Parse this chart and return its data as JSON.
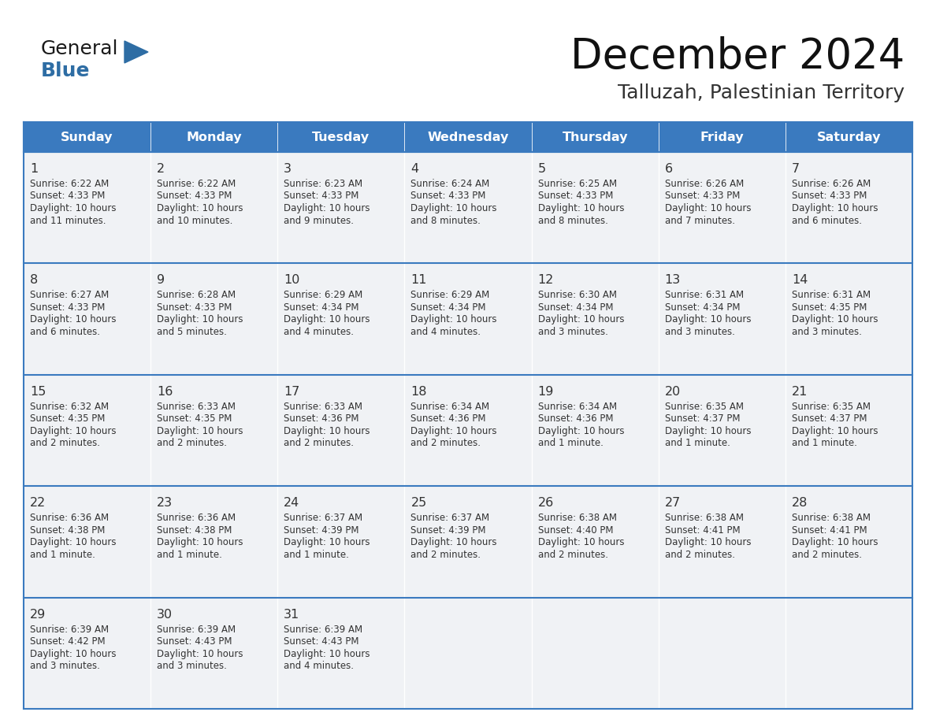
{
  "title": "December 2024",
  "subtitle": "Talluzah, Palestinian Territory",
  "header_bg": "#3a7abf",
  "header_text": "#FFFFFF",
  "cell_bg": "#f0f2f5",
  "cell_border_color": "#3a7abf",
  "day_num_color": "#333333",
  "cell_text_color": "#333333",
  "days_of_week": [
    "Sunday",
    "Monday",
    "Tuesday",
    "Wednesday",
    "Thursday",
    "Friday",
    "Saturday"
  ],
  "weeks": [
    [
      {
        "day": "1",
        "sunrise": "6:22 AM",
        "sunset": "4:33 PM",
        "daylight_extra": "11 minutes."
      },
      {
        "day": "2",
        "sunrise": "6:22 AM",
        "sunset": "4:33 PM",
        "daylight_extra": "10 minutes."
      },
      {
        "day": "3",
        "sunrise": "6:23 AM",
        "sunset": "4:33 PM",
        "daylight_extra": "9 minutes."
      },
      {
        "day": "4",
        "sunrise": "6:24 AM",
        "sunset": "4:33 PM",
        "daylight_extra": "8 minutes."
      },
      {
        "day": "5",
        "sunrise": "6:25 AM",
        "sunset": "4:33 PM",
        "daylight_extra": "8 minutes."
      },
      {
        "day": "6",
        "sunrise": "6:26 AM",
        "sunset": "4:33 PM",
        "daylight_extra": "7 minutes."
      },
      {
        "day": "7",
        "sunrise": "6:26 AM",
        "sunset": "4:33 PM",
        "daylight_extra": "6 minutes."
      }
    ],
    [
      {
        "day": "8",
        "sunrise": "6:27 AM",
        "sunset": "4:33 PM",
        "daylight_extra": "6 minutes."
      },
      {
        "day": "9",
        "sunrise": "6:28 AM",
        "sunset": "4:33 PM",
        "daylight_extra": "5 minutes."
      },
      {
        "day": "10",
        "sunrise": "6:29 AM",
        "sunset": "4:34 PM",
        "daylight_extra": "4 minutes."
      },
      {
        "day": "11",
        "sunrise": "6:29 AM",
        "sunset": "4:34 PM",
        "daylight_extra": "4 minutes."
      },
      {
        "day": "12",
        "sunrise": "6:30 AM",
        "sunset": "4:34 PM",
        "daylight_extra": "3 minutes."
      },
      {
        "day": "13",
        "sunrise": "6:31 AM",
        "sunset": "4:34 PM",
        "daylight_extra": "3 minutes."
      },
      {
        "day": "14",
        "sunrise": "6:31 AM",
        "sunset": "4:35 PM",
        "daylight_extra": "3 minutes."
      }
    ],
    [
      {
        "day": "15",
        "sunrise": "6:32 AM",
        "sunset": "4:35 PM",
        "daylight_extra": "2 minutes."
      },
      {
        "day": "16",
        "sunrise": "6:33 AM",
        "sunset": "4:35 PM",
        "daylight_extra": "2 minutes."
      },
      {
        "day": "17",
        "sunrise": "6:33 AM",
        "sunset": "4:36 PM",
        "daylight_extra": "2 minutes."
      },
      {
        "day": "18",
        "sunrise": "6:34 AM",
        "sunset": "4:36 PM",
        "daylight_extra": "2 minutes."
      },
      {
        "day": "19",
        "sunrise": "6:34 AM",
        "sunset": "4:36 PM",
        "daylight_extra": "1 minute."
      },
      {
        "day": "20",
        "sunrise": "6:35 AM",
        "sunset": "4:37 PM",
        "daylight_extra": "1 minute."
      },
      {
        "day": "21",
        "sunrise": "6:35 AM",
        "sunset": "4:37 PM",
        "daylight_extra": "1 minute."
      }
    ],
    [
      {
        "day": "22",
        "sunrise": "6:36 AM",
        "sunset": "4:38 PM",
        "daylight_extra": "1 minute."
      },
      {
        "day": "23",
        "sunrise": "6:36 AM",
        "sunset": "4:38 PM",
        "daylight_extra": "1 minute."
      },
      {
        "day": "24",
        "sunrise": "6:37 AM",
        "sunset": "4:39 PM",
        "daylight_extra": "1 minute."
      },
      {
        "day": "25",
        "sunrise": "6:37 AM",
        "sunset": "4:39 PM",
        "daylight_extra": "2 minutes."
      },
      {
        "day": "26",
        "sunrise": "6:38 AM",
        "sunset": "4:40 PM",
        "daylight_extra": "2 minutes."
      },
      {
        "day": "27",
        "sunrise": "6:38 AM",
        "sunset": "4:41 PM",
        "daylight_extra": "2 minutes."
      },
      {
        "day": "28",
        "sunrise": "6:38 AM",
        "sunset": "4:41 PM",
        "daylight_extra": "2 minutes."
      }
    ],
    [
      {
        "day": "29",
        "sunrise": "6:39 AM",
        "sunset": "4:42 PM",
        "daylight_extra": "3 minutes."
      },
      {
        "day": "30",
        "sunrise": "6:39 AM",
        "sunset": "4:43 PM",
        "daylight_extra": "3 minutes."
      },
      {
        "day": "31",
        "sunrise": "6:39 AM",
        "sunset": "4:43 PM",
        "daylight_extra": "4 minutes."
      },
      null,
      null,
      null,
      null
    ]
  ],
  "logo_general_color": "#1a1a1a",
  "logo_blue_color": "#2e6da4",
  "logo_triangle_color": "#2e6da4"
}
